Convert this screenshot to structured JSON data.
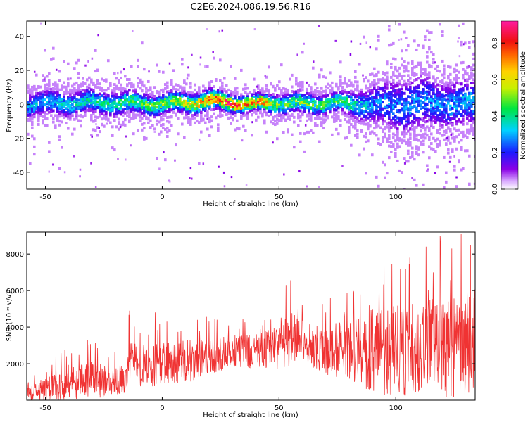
{
  "title": "C2E6.2024.086.19.56.R16",
  "chart_data": [
    {
      "type": "heatmap",
      "xlabel": "Height of straight line (km)",
      "ylabel": "Frequency (Hz)",
      "xlim": [
        -58,
        134
      ],
      "ylim": [
        -50,
        49
      ],
      "x_ticks": [
        "-50",
        "0",
        "50",
        "100"
      ],
      "y_ticks": [
        "-40",
        "-20",
        "0",
        "20",
        "40"
      ],
      "colorbar": {
        "label": "Normalized spectral amplitude",
        "range": [
          0,
          0.92
        ],
        "ticks": [
          "0.0",
          "0.2",
          "0.4",
          "0.6",
          "0.8"
        ],
        "colormap": "rainbow (purple-blue-cyan-green-yellow-red-magenta)"
      },
      "ridge": {
        "description": "energy concentrated near 0 Hz across all heights; peak amplitude near 20-45 km; spread widens above 85 km",
        "x": [
          -58,
          -40,
          -20,
          0,
          20,
          30,
          40,
          50,
          60,
          70,
          80,
          90,
          100,
          110,
          120,
          134
        ],
        "center_hz": [
          0,
          1,
          1,
          0,
          2,
          1,
          0,
          1,
          0,
          1,
          0,
          0,
          -1,
          1,
          0,
          1
        ],
        "peak_amplitude": [
          0.35,
          0.4,
          0.45,
          0.55,
          0.75,
          0.9,
          0.85,
          0.5,
          0.55,
          0.5,
          0.45,
          0.3,
          0.3,
          0.3,
          0.3,
          0.35
        ],
        "spread_hz": [
          6,
          6,
          6,
          5,
          5,
          4,
          4,
          5,
          5,
          5,
          6,
          10,
          14,
          14,
          12,
          12
        ]
      },
      "grid": false
    },
    {
      "type": "line",
      "xlabel": "Height of straight line (km)",
      "ylabel": "SNR (10 * v/v)",
      "xlim": [
        -58,
        134
      ],
      "ylim": [
        0,
        9200
      ],
      "x_ticks": [
        "-50",
        "0",
        "50",
        "100"
      ],
      "y_ticks": [
        "2000",
        "4000",
        "6000",
        "8000"
      ],
      "series": [
        {
          "color": "#f03333",
          "envelope": {
            "x": [
              -58,
              -50,
              -40,
              -30,
              -20,
              -15,
              -14,
              -10,
              0,
              10,
              20,
              30,
              40,
              50,
              55,
              60,
              62,
              70,
              80,
              90,
              100,
              110,
              120,
              134
            ],
            "median": [
              300,
              600,
              900,
              1100,
              1000,
              1100,
              2200,
              1800,
              2000,
              2100,
              2400,
              2600,
              2700,
              2900,
              3400,
              3200,
              2600,
              2700,
              2800,
              2700,
              2600,
              2800,
              2900,
              3000
            ],
            "spread": [
              400,
              700,
              900,
              1000,
              800,
              800,
              1400,
              1200,
              1200,
              1200,
              1000,
              900,
              900,
              1200,
              1600,
              1200,
              700,
              1300,
              1700,
              2300,
              2600,
              2800,
              2800,
              2800
            ]
          },
          "spikes": [
            [
              -32,
              3300
            ],
            [
              -14,
              4900
            ],
            [
              -3,
              4800
            ],
            [
              2,
              4300
            ],
            [
              8,
              3800
            ],
            [
              16,
              3800
            ],
            [
              33,
              3900
            ],
            [
              43,
              4100
            ],
            [
              53,
              6300
            ],
            [
              70,
              4800
            ],
            [
              82,
              5900
            ],
            [
              95,
              7400
            ],
            [
              102,
              7200
            ],
            [
              106,
              7800
            ],
            [
              113,
              8400
            ],
            [
              119,
              9000
            ],
            [
              124,
              8300
            ],
            [
              128,
              9100
            ],
            [
              132,
              8500
            ]
          ]
        }
      ],
      "grid": false
    }
  ]
}
